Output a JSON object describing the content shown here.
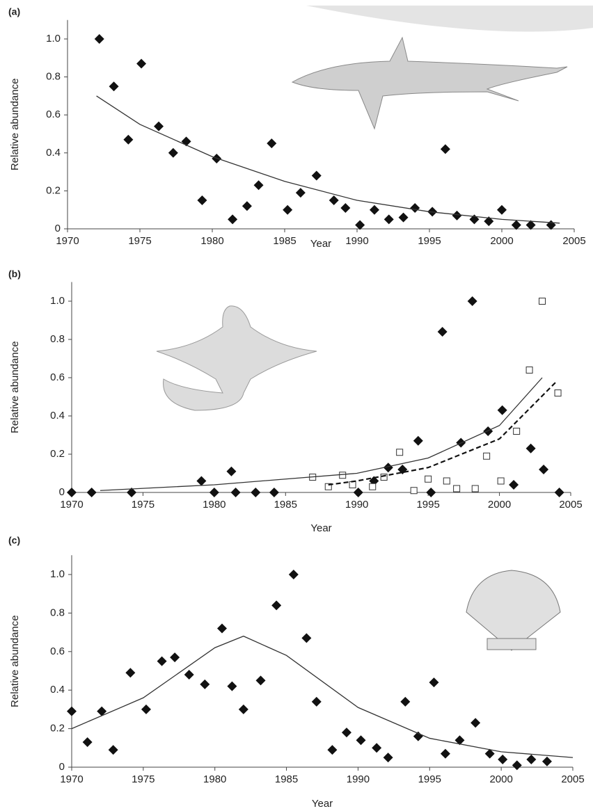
{
  "chart_data": [
    {
      "type": "scatter",
      "label": "(a)",
      "x_label": "Year",
      "y_label": "Relative abundance",
      "xlim": [
        1970,
        2005
      ],
      "xticks": [
        1970,
        1975,
        1980,
        1985,
        1990,
        1995,
        2000,
        2005
      ],
      "ylim": [
        0,
        1.1
      ],
      "yticks": [
        0,
        0.2,
        0.4,
        0.6,
        0.8,
        {
          "value": 1,
          "label": "1.0"
        }
      ],
      "series": [
        {
          "marker": "diamond",
          "color": "#111111",
          "x": [
            1972.2,
            1973.2,
            1974.2,
            1975.1,
            1976.3,
            1977.3,
            1978.2,
            1979.3,
            1980.3,
            1981.4,
            1982.4,
            1983.2,
            1984.1,
            1985.2,
            1986.1,
            1987.2,
            1988.4,
            1989.2,
            1990.2,
            1991.2,
            1992.2,
            1993.2,
            1994.0,
            1995.2,
            1996.1,
            1996.9,
            1998.1,
            1999.1,
            2000.0,
            2001.0,
            2002.0,
            2003.4
          ],
          "values": [
            1.0,
            0.75,
            0.47,
            0.87,
            0.54,
            0.4,
            0.46,
            0.15,
            0.37,
            0.05,
            0.12,
            0.23,
            0.45,
            0.1,
            0.19,
            0.28,
            0.15,
            0.11,
            0.02,
            0.1,
            0.05,
            0.06,
            0.11,
            0.09,
            0.42,
            0.07,
            0.05,
            0.04,
            0.1,
            0.02,
            0.02,
            0.02
          ]
        },
        {
          "marker": "line",
          "color": "#333333",
          "x": [
            1972,
            1975,
            1980,
            1985,
            1990,
            1995,
            2000,
            2004
          ],
          "values": [
            0.7,
            0.55,
            0.38,
            0.25,
            0.15,
            0.09,
            0.05,
            0.03
          ]
        }
      ]
    },
    {
      "type": "scatter",
      "label": "(b)",
      "x_label": "Year",
      "y_label": "Relative abundance",
      "xlim": [
        1970,
        2005
      ],
      "xticks": [
        1970,
        1975,
        1980,
        1985,
        1990,
        1995,
        2000,
        2005
      ],
      "ylim": [
        0,
        1.1
      ],
      "yticks": [
        0,
        0.2,
        0.4,
        0.6,
        0.8,
        {
          "value": 1,
          "label": "1.0"
        }
      ],
      "series": [
        {
          "marker": "diamond",
          "color": "#111111",
          "x": [
            1970,
            1971.4,
            1974.2,
            1979.1,
            1980.0,
            1981.2,
            1981.5,
            1982.9,
            1984.2,
            1990.1,
            1991.2,
            1992.2,
            1993.2,
            1994.3,
            1995.2,
            1996.0,
            1997.3,
            1998.1,
            1999.2,
            2000.2,
            2001.0,
            2002.2,
            2003.1,
            2004.2
          ],
          "values": [
            0,
            0,
            0,
            0.06,
            0,
            0.11,
            0,
            0,
            0,
            0,
            0.06,
            0.13,
            0.12,
            0.27,
            0,
            0.84,
            0.26,
            1.0,
            0.32,
            0.43,
            0.04,
            0.23,
            0.12,
            0
          ]
        },
        {
          "marker": "square",
          "color": "#333333",
          "x": [
            1986.9,
            1988.0,
            1989.0,
            1989.7,
            1991.1,
            1991.9,
            1993.0,
            1994.0,
            1995.0,
            1996.3,
            1997.0,
            1998.3,
            1999.1,
            2000.1,
            2001.2,
            2002.1,
            2003.0,
            2004.1
          ],
          "values": [
            0.08,
            0.03,
            0.09,
            0.04,
            0.03,
            0.08,
            0.21,
            0.01,
            0.07,
            0.06,
            0.02,
            0.02,
            0.19,
            0.06,
            0.32,
            0.64,
            1.0,
            0.52
          ]
        },
        {
          "marker": "line",
          "color": "#333333",
          "x": [
            1972,
            1980,
            1985,
            1990,
            1995,
            2000,
            2003
          ],
          "values": [
            0.01,
            0.04,
            0.07,
            0.1,
            0.18,
            0.35,
            0.6
          ]
        },
        {
          "marker": "line",
          "dash": true,
          "color": "#111111",
          "x": [
            1988,
            1990,
            1995,
            2000,
            2004
          ],
          "values": [
            0.04,
            0.06,
            0.13,
            0.28,
            0.58
          ]
        }
      ]
    },
    {
      "type": "scatter",
      "label": "(c)",
      "x_label": "Year",
      "y_label": "Relative abundance",
      "xlim": [
        1970,
        2005
      ],
      "xticks": [
        1970,
        1975,
        1980,
        1985,
        1990,
        1995,
        2000,
        2005
      ],
      "ylim": [
        0,
        1.1
      ],
      "yticks": [
        0,
        0.2,
        0.4,
        0.6,
        0.8,
        {
          "value": 1,
          "label": "1.0"
        }
      ],
      "series": [
        {
          "marker": "diamond",
          "color": "#111111",
          "x": [
            1970,
            1971.1,
            1972.1,
            1972.9,
            1974.1,
            1975.2,
            1976.3,
            1977.2,
            1978.2,
            1979.3,
            1980.5,
            1981.2,
            1982.0,
            1983.2,
            1984.3,
            1985.5,
            1986.4,
            1987.1,
            1988.2,
            1989.2,
            1990.2,
            1991.3,
            1992.1,
            1993.3,
            1994.2,
            1995.3,
            1996.1,
            1997.1,
            1998.2,
            1999.2,
            2000.1,
            2001.1,
            2002.1,
            2003.2
          ],
          "values": [
            0.29,
            0.13,
            0.29,
            0.09,
            0.49,
            0.3,
            0.55,
            0.57,
            0.48,
            0.43,
            0.72,
            0.42,
            0.3,
            0.45,
            0.84,
            1.0,
            0.67,
            0.34,
            0.09,
            0.18,
            0.14,
            0.1,
            0.05,
            0.34,
            0.16,
            0.44,
            0.07,
            0.14,
            0.23,
            0.07,
            0.04,
            0.01,
            0.04,
            0.03
          ]
        },
        {
          "marker": "line",
          "color": "#333333",
          "x": [
            1970,
            1975,
            1980,
            1982,
            1985,
            1990,
            1995,
            2000,
            2005
          ],
          "values": [
            0.2,
            0.36,
            0.62,
            0.68,
            0.58,
            0.31,
            0.15,
            0.08,
            0.05
          ]
        }
      ]
    }
  ]
}
